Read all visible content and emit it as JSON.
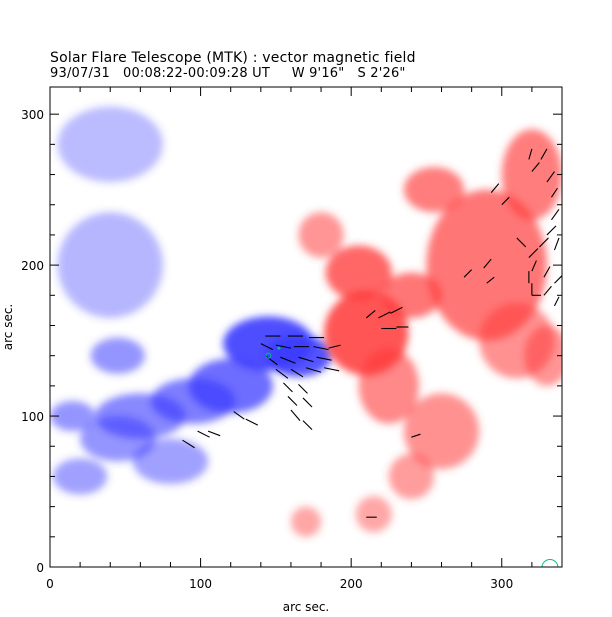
{
  "header": {
    "title": "Solar Flare Telescope (MTK) : vector magnetic field",
    "subtitle": "93/07/31   00:08:22-00:09:28 UT     W 9'16\"   S 2'26\""
  },
  "chart_data": {
    "type": "heatmap",
    "xlabel": "arc sec.",
    "ylabel": "arc sec.",
    "xlim": [
      0,
      340
    ],
    "ylim": [
      0,
      318
    ],
    "x_ticks": [
      0,
      100,
      200,
      300
    ],
    "y_ticks": [
      0,
      100,
      200,
      300
    ],
    "colors": {
      "positive_polarity": "#ff3b3b",
      "negative_polarity": "#3b3bff",
      "vectors": "#000000",
      "markers": "#00c080"
    },
    "blue_regions": [
      {
        "x": 145,
        "y": 148,
        "w": 30,
        "h": 18,
        "strength": 1.0
      },
      {
        "x": 165,
        "y": 140,
        "w": 22,
        "h": 14,
        "strength": 0.95
      },
      {
        "x": 120,
        "y": 120,
        "w": 28,
        "h": 18,
        "strength": 0.75
      },
      {
        "x": 95,
        "y": 110,
        "w": 28,
        "h": 15,
        "strength": 0.65
      },
      {
        "x": 60,
        "y": 100,
        "w": 30,
        "h": 15,
        "strength": 0.55
      },
      {
        "x": 45,
        "y": 85,
        "w": 25,
        "h": 15,
        "strength": 0.45
      },
      {
        "x": 15,
        "y": 100,
        "w": 15,
        "h": 10,
        "strength": 0.45
      },
      {
        "x": 45,
        "y": 140,
        "w": 18,
        "h": 12,
        "strength": 0.45
      },
      {
        "x": 20,
        "y": 60,
        "w": 18,
        "h": 12,
        "strength": 0.35
      },
      {
        "x": 80,
        "y": 70,
        "w": 25,
        "h": 15,
        "strength": 0.35
      },
      {
        "x": 40,
        "y": 200,
        "w": 35,
        "h": 35,
        "strength": 0.18
      },
      {
        "x": 40,
        "y": 280,
        "w": 35,
        "h": 25,
        "strength": 0.15
      }
    ],
    "red_regions": [
      {
        "x": 210,
        "y": 155,
        "w": 28,
        "h": 28,
        "strength": 0.95
      },
      {
        "x": 205,
        "y": 195,
        "w": 22,
        "h": 18,
        "strength": 0.8
      },
      {
        "x": 240,
        "y": 180,
        "w": 20,
        "h": 15,
        "strength": 0.7
      },
      {
        "x": 290,
        "y": 200,
        "w": 40,
        "h": 50,
        "strength": 0.7
      },
      {
        "x": 320,
        "y": 260,
        "w": 20,
        "h": 30,
        "strength": 0.65
      },
      {
        "x": 255,
        "y": 250,
        "w": 20,
        "h": 15,
        "strength": 0.65
      },
      {
        "x": 225,
        "y": 120,
        "w": 20,
        "h": 25,
        "strength": 0.55
      },
      {
        "x": 310,
        "y": 150,
        "w": 25,
        "h": 25,
        "strength": 0.5
      },
      {
        "x": 260,
        "y": 90,
        "w": 25,
        "h": 25,
        "strength": 0.5
      },
      {
        "x": 180,
        "y": 220,
        "w": 15,
        "h": 15,
        "strength": 0.45
      },
      {
        "x": 330,
        "y": 140,
        "w": 15,
        "h": 20,
        "strength": 0.45
      },
      {
        "x": 240,
        "y": 60,
        "w": 15,
        "h": 15,
        "strength": 0.4
      },
      {
        "x": 170,
        "y": 30,
        "w": 10,
        "h": 10,
        "strength": 0.3
      },
      {
        "x": 215,
        "y": 35,
        "w": 12,
        "h": 12,
        "strength": 0.3
      }
    ],
    "vectors": [
      {
        "x": 143,
        "y": 153,
        "dx": 10,
        "dy": 0
      },
      {
        "x": 158,
        "y": 153,
        "dx": 10,
        "dy": 0
      },
      {
        "x": 172,
        "y": 152,
        "dx": 10,
        "dy": 0
      },
      {
        "x": 140,
        "y": 148,
        "dx": 8,
        "dy": -4
      },
      {
        "x": 150,
        "y": 147,
        "dx": 10,
        "dy": -2
      },
      {
        "x": 162,
        "y": 146,
        "dx": 10,
        "dy": 0
      },
      {
        "x": 175,
        "y": 146,
        "dx": 10,
        "dy": -2
      },
      {
        "x": 185,
        "y": 145,
        "dx": 8,
        "dy": 2
      },
      {
        "x": 143,
        "y": 140,
        "dx": 8,
        "dy": -6
      },
      {
        "x": 153,
        "y": 139,
        "dx": 10,
        "dy": -4
      },
      {
        "x": 165,
        "y": 139,
        "dx": 10,
        "dy": -3
      },
      {
        "x": 177,
        "y": 139,
        "dx": 10,
        "dy": -2
      },
      {
        "x": 150,
        "y": 131,
        "dx": 8,
        "dy": -6
      },
      {
        "x": 160,
        "y": 131,
        "dx": 8,
        "dy": -5
      },
      {
        "x": 170,
        "y": 132,
        "dx": 10,
        "dy": -3
      },
      {
        "x": 182,
        "y": 132,
        "dx": 10,
        "dy": -2
      },
      {
        "x": 155,
        "y": 122,
        "dx": 6,
        "dy": -6
      },
      {
        "x": 165,
        "y": 121,
        "dx": 6,
        "dy": -6
      },
      {
        "x": 158,
        "y": 113,
        "dx": 6,
        "dy": -6
      },
      {
        "x": 168,
        "y": 112,
        "dx": 6,
        "dy": -6
      },
      {
        "x": 160,
        "y": 104,
        "dx": 6,
        "dy": -7
      },
      {
        "x": 168,
        "y": 97,
        "dx": 6,
        "dy": -6
      },
      {
        "x": 122,
        "y": 103,
        "dx": 7,
        "dy": -5
      },
      {
        "x": 130,
        "y": 98,
        "dx": 8,
        "dy": -4
      },
      {
        "x": 98,
        "y": 90,
        "dx": 8,
        "dy": -4
      },
      {
        "x": 88,
        "y": 84,
        "dx": 8,
        "dy": -5
      },
      {
        "x": 105,
        "y": 90,
        "dx": 8,
        "dy": -3
      },
      {
        "x": 210,
        "y": 165,
        "dx": 6,
        "dy": 5
      },
      {
        "x": 218,
        "y": 165,
        "dx": 8,
        "dy": 4
      },
      {
        "x": 226,
        "y": 168,
        "dx": 8,
        "dy": 4
      },
      {
        "x": 220,
        "y": 158,
        "dx": 10,
        "dy": 0
      },
      {
        "x": 230,
        "y": 159,
        "dx": 8,
        "dy": 0
      },
      {
        "x": 240,
        "y": 86,
        "dx": 6,
        "dy": 2
      },
      {
        "x": 210,
        "y": 33,
        "dx": 7,
        "dy": 0
      },
      {
        "x": 288,
        "y": 198,
        "dx": 5,
        "dy": 6
      },
      {
        "x": 290,
        "y": 188,
        "dx": 5,
        "dy": 4
      },
      {
        "x": 275,
        "y": 192,
        "dx": 5,
        "dy": 5
      },
      {
        "x": 293,
        "y": 248,
        "dx": 5,
        "dy": 6
      },
      {
        "x": 300,
        "y": 240,
        "dx": 5,
        "dy": 5
      },
      {
        "x": 310,
        "y": 218,
        "dx": 6,
        "dy": -6
      },
      {
        "x": 318,
        "y": 205,
        "dx": 6,
        "dy": 6
      },
      {
        "x": 325,
        "y": 212,
        "dx": 6,
        "dy": 6
      },
      {
        "x": 330,
        "y": 220,
        "dx": 6,
        "dy": 6
      },
      {
        "x": 333,
        "y": 230,
        "dx": 5,
        "dy": 7
      },
      {
        "x": 318,
        "y": 188,
        "dx": 0,
        "dy": 8
      },
      {
        "x": 320,
        "y": 180,
        "dx": 0,
        "dy": 8
      },
      {
        "x": 320,
        "y": 196,
        "dx": 3,
        "dy": 7
      },
      {
        "x": 328,
        "y": 180,
        "dx": 5,
        "dy": 6
      },
      {
        "x": 328,
        "y": 192,
        "dx": 4,
        "dy": 7
      },
      {
        "x": 335,
        "y": 188,
        "dx": 5,
        "dy": 5
      },
      {
        "x": 330,
        "y": 255,
        "dx": 5,
        "dy": 7
      },
      {
        "x": 333,
        "y": 245,
        "dx": 4,
        "dy": 6
      },
      {
        "x": 320,
        "y": 262,
        "dx": 5,
        "dy": 6
      },
      {
        "x": 326,
        "y": 270,
        "dx": 4,
        "dy": 7
      },
      {
        "x": 318,
        "y": 270,
        "dx": 2,
        "dy": 7
      },
      {
        "x": 320,
        "y": 180,
        "dx": 6,
        "dy": 0
      },
      {
        "x": 335,
        "y": 210,
        "dx": 3,
        "dy": 8
      },
      {
        "x": 335,
        "y": 173,
        "dx": 3,
        "dy": 6
      }
    ],
    "markers": [
      {
        "x": 145,
        "y": 140,
        "shape": "ring"
      },
      {
        "x": 152,
        "y": 145,
        "shape": "dot"
      },
      {
        "x": 332,
        "y": 1,
        "shape": "arc"
      }
    ]
  }
}
